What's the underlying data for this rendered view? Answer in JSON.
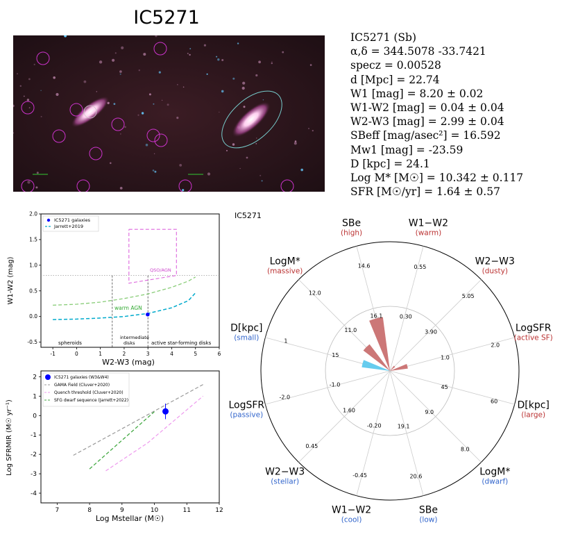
{
  "title": "IC5271",
  "info_lines": [
    "IC5271  (Sb)",
    "α,δ = 344.5078 -33.7421",
    "specz = 0.00528",
    "d [Mpc] = 22.74",
    "W1 [mag] = 8.20 ± 0.02",
    "W1-W2 [mag] = 0.04 ± 0.04",
    "W2-W3 [mag] = 2.99 ± 0.04",
    "SBeff [mag/asec²] = 16.592",
    "Mw1 [mag] = -23.59",
    "D [kpc] = 24.1",
    "Log M* [M☉] = 10.342 ± 0.117",
    "SFR [M☉/yr] = 1.64 ± 0.57"
  ],
  "colors": {
    "marker": "#0000ff",
    "jarrett_line": "#00aacc",
    "warm_agn": "#88cc77",
    "qso_box": "#dd66dd",
    "gama": "#999999",
    "quench": "#ee99ee",
    "sfg_dwarf": "#44aa44",
    "radar_warm": "#cc7777",
    "radar_cool": "#66ccee",
    "label_red": "#bb3333",
    "label_blue": "#3366cc"
  },
  "chart_data": [
    {
      "type": "scatter",
      "name": "color-color",
      "xlabel": "W2-W3 (mag)",
      "ylabel": "W1-W2 (mag)",
      "xlim": [
        -1.5,
        6
      ],
      "ylim": [
        -0.6,
        2.0
      ],
      "xticks": [
        "-1",
        "0",
        "1",
        "2",
        "3",
        "4",
        "5",
        "6"
      ],
      "yticks": [
        "-0.5",
        "0.0",
        "0.5",
        "1.0",
        "1.5",
        "2.0"
      ],
      "legend": [
        "IC5271 galaxies",
        "Jarrett+2019"
      ],
      "legend_position": "top-left",
      "points": [
        {
          "x": 2.99,
          "y": 0.04
        }
      ],
      "jarrett_curve": [
        [
          -1.0,
          -0.06
        ],
        [
          0.0,
          -0.05
        ],
        [
          1.0,
          -0.03
        ],
        [
          2.0,
          0.0
        ],
        [
          3.0,
          0.06
        ],
        [
          4.0,
          0.17
        ],
        [
          4.7,
          0.31
        ],
        [
          5.0,
          0.46
        ]
      ],
      "warm_agn_curve": [
        [
          -1.0,
          0.22
        ],
        [
          0.0,
          0.24
        ],
        [
          1.0,
          0.28
        ],
        [
          2.0,
          0.35
        ],
        [
          3.0,
          0.44
        ],
        [
          4.0,
          0.57
        ],
        [
          4.7,
          0.69
        ],
        [
          5.0,
          0.77
        ]
      ],
      "qso_box": [
        [
          2.2,
          1.7
        ],
        [
          4.2,
          1.7
        ],
        [
          4.2,
          0.8
        ],
        [
          2.2,
          0.65
        ],
        [
          2.2,
          1.7
        ]
      ],
      "dotted_y": 0.8,
      "dashed_x": [
        1.5,
        3.0
      ],
      "annotations": [
        "warm AGN",
        "QSO/AGN",
        "spheroids",
        "intermediate",
        "disks",
        "active star-forming disks"
      ]
    },
    {
      "type": "scatter",
      "name": "sfr-mass",
      "xlabel": "Log Mstellar (M☉)",
      "ylabel": "Log SFRMIR (M☉ yr⁻¹)",
      "xlim": [
        6.5,
        12
      ],
      "ylim": [
        -4.5,
        2.3
      ],
      "xticks": [
        "7",
        "8",
        "9",
        "10",
        "11",
        "12"
      ],
      "yticks": [
        "-4",
        "-3",
        "-2",
        "-1",
        "0",
        "1",
        "2"
      ],
      "legend": [
        "IC5271 galaxies (W3&W4)",
        "GAMA Field (Cluver+2020)",
        "Quench threshold (Cluver+2020)",
        "SFG dwarf sequence (Jarrett+2022)"
      ],
      "legend_position": "top-left",
      "points": [
        {
          "x": 10.342,
          "y": 0.215,
          "yerr": 0.4
        }
      ],
      "gama_line": [
        [
          7.5,
          -2.05
        ],
        [
          11.5,
          1.6
        ]
      ],
      "quench_line": [
        [
          8.5,
          -2.85
        ],
        [
          9.8,
          -1.4
        ],
        [
          11.5,
          1.0
        ]
      ],
      "sfg_line": [
        [
          8.0,
          -2.75
        ],
        [
          10.0,
          0.2
        ]
      ]
    },
    {
      "type": "radar",
      "name": "radar",
      "label": "IC5271",
      "axes": [
        {
          "name": "W1−W2",
          "sub": "(warm)",
          "tick": "0.55",
          "inner": "0.30",
          "side": "warm",
          "value": 0.0
        },
        {
          "name": "W2−W3",
          "sub": "(dusty)",
          "tick": "5.05",
          "inner": "3.90",
          "side": "warm",
          "value": 0.05
        },
        {
          "name": "LogSFR",
          "sub": "(active SF)",
          "tick": "2.0",
          "inner": "1.0",
          "side": "warm",
          "value": 0.14
        },
        {
          "name": "D[kpc]",
          "sub": "(large)",
          "tick": "60",
          "inner": "45",
          "side": "warm",
          "value": 0.0
        },
        {
          "name": "LogM*",
          "sub": "(dwarf)",
          "tick": "8.0",
          "inner": "9.0",
          "side": "cool",
          "value": 0.0
        },
        {
          "name": "SBe",
          "sub": "(low)",
          "tick": "20.6",
          "inner": "19.1",
          "side": "cool",
          "value": 0.0
        },
        {
          "name": "W1−W2",
          "sub": "(cool)",
          "tick": "-0.45",
          "inner": "-0.20",
          "side": "cool",
          "value": 0.0
        },
        {
          "name": "W2−W3",
          "sub": "(stellar)",
          "tick": "0.45",
          "inner": "1.60",
          "side": "cool",
          "value": 0.0
        },
        {
          "name": "LogSFR",
          "sub": "(passive)",
          "tick": "-2.0",
          "inner": "-1.0",
          "side": "cool",
          "value": 0.0
        },
        {
          "name": "D[kpc]",
          "sub": "(small)",
          "tick": "1",
          "inner": "15",
          "side": "cool",
          "value": 0.22
        },
        {
          "name": "LogM*",
          "sub": "(massive)",
          "tick": "12.0",
          "inner": "11.0",
          "side": "warm",
          "value": 0.26
        },
        {
          "name": "SBe",
          "sub": "(high)",
          "tick": "14.6",
          "inner": "16.1",
          "side": "warm",
          "value": 0.42
        }
      ]
    }
  ]
}
